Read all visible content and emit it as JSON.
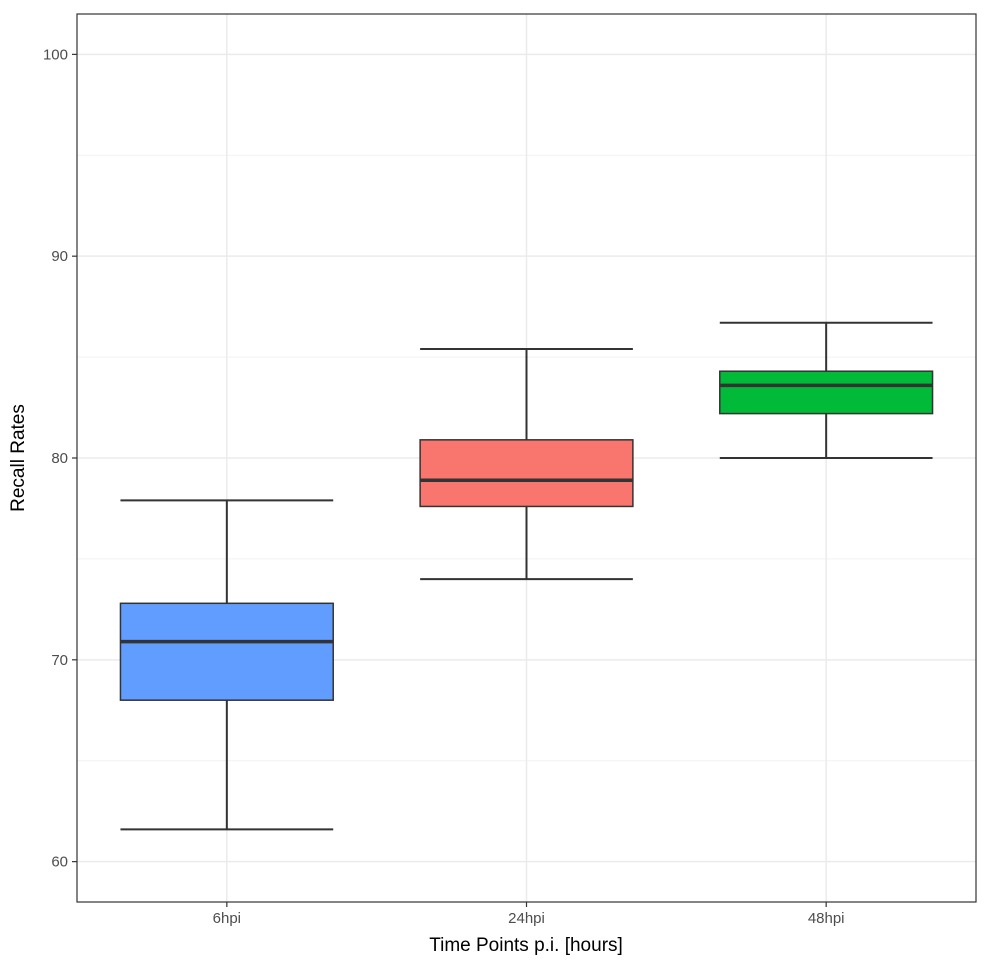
{
  "chart_data": {
    "type": "boxplot",
    "title": "",
    "xlabel": "Time Points p.i. [hours]",
    "ylabel": "Recall Rates",
    "ylim": [
      58,
      102
    ],
    "yticks": [
      60,
      70,
      80,
      90,
      100
    ],
    "grid": true,
    "legend": "none",
    "categories": [
      "6hpi",
      "24hpi",
      "48hpi"
    ],
    "boxes": [
      {
        "category": "6hpi",
        "min": 61.6,
        "q1": 68.0,
        "median": 70.9,
        "q3": 72.8,
        "max": 77.9,
        "color": "#619CFF"
      },
      {
        "category": "24hpi",
        "min": 74.0,
        "q1": 77.6,
        "median": 78.9,
        "q3": 80.9,
        "max": 85.4,
        "color": "#F8766D"
      },
      {
        "category": "48hpi",
        "min": 80.0,
        "q1": 82.2,
        "median": 83.6,
        "q3": 84.3,
        "max": 86.7,
        "color": "#00BA38"
      }
    ]
  }
}
